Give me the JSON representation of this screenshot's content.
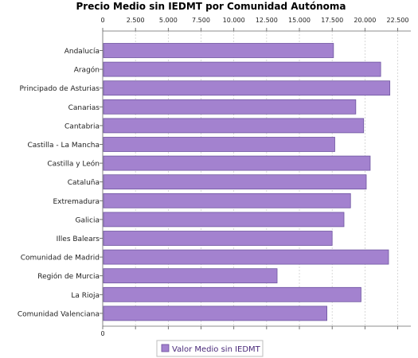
{
  "chart_data": {
    "type": "bar",
    "orientation": "horizontal",
    "title": "Precio Medio sin IEDMT por Comunidad Autónoma",
    "xlabel": "",
    "ylabel": "",
    "xlim": [
      0,
      23500
    ],
    "ticks": [
      0,
      2500,
      5000,
      7500,
      10000,
      12500,
      15000,
      17500,
      20000,
      22500
    ],
    "tick_labels": [
      "0",
      "2.500",
      "5.000",
      "7.500",
      "10.000",
      "12.500",
      "15.000",
      "17.500",
      "20.000",
      "22.500"
    ],
    "grid": true,
    "legend_position": "bottom",
    "categories": [
      "Andalucía",
      "Aragón",
      "Principado de Asturias",
      "Canarias",
      "Cantabria",
      "Castilla - La Mancha",
      "Castilla y León",
      "Cataluña",
      "Extremadura",
      "Galicia",
      "Illes Balears",
      "Comunidad de Madrid",
      "Región de Murcia",
      "La Rioja",
      "Comunidad Valenciana"
    ],
    "series": [
      {
        "name": "Valor Medio sin IEDMT",
        "color": "#a382cf",
        "values": [
          17600,
          21200,
          21900,
          19300,
          19900,
          17700,
          20400,
          20100,
          18900,
          18400,
          17500,
          21800,
          13300,
          19700,
          17100
        ]
      }
    ]
  }
}
